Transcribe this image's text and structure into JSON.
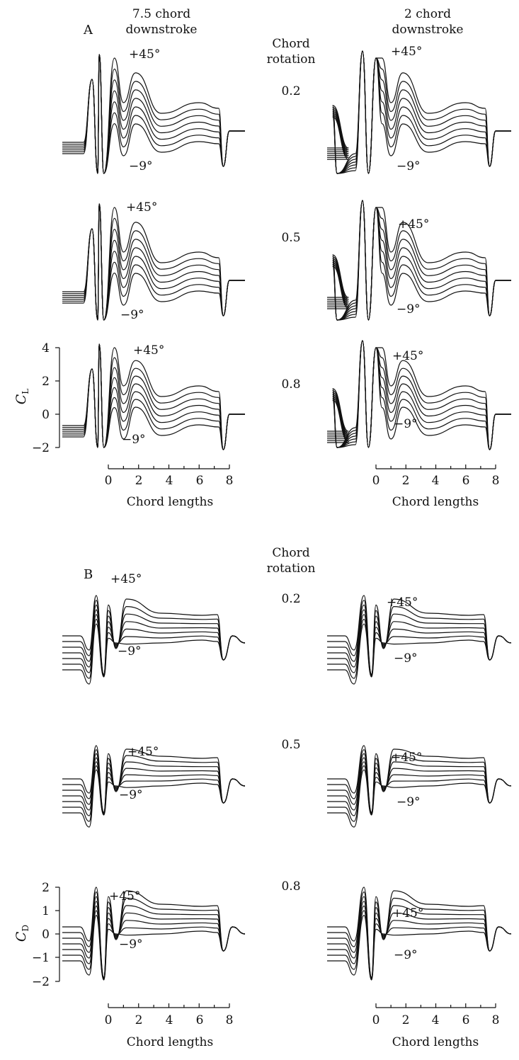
{
  "labels": {
    "col_left": [
      "7.5 chord",
      "downstroke"
    ],
    "col_right": [
      "2 chord",
      "downstroke"
    ],
    "rotation": [
      "Chord",
      "rotation"
    ],
    "panel_a": "A",
    "panel_b": "B",
    "angle_high": "+45°",
    "angle_low": "−9°",
    "xlabel": "Chord lengths",
    "ylabel_lift_main": "C",
    "ylabel_lift_sub": "L",
    "ylabel_drag_main": "C",
    "ylabel_drag_sub": "D"
  },
  "chart_data": {
    "type": "line",
    "description_of_series": "Each subplot shows one curve per angle of attack between the labelled extremes (+45° and −9°).",
    "xlabel": "Chord lengths",
    "x_ticks": [
      0,
      2,
      4,
      6,
      8
    ],
    "panels": [
      {
        "panel": "A",
        "quantity": "CL",
        "ylim": [
          -2,
          4
        ],
        "y_ticks": [
          4,
          2,
          0,
          -2
        ],
        "rows": [
          {
            "rotation": "0.2",
            "columns": [
              "7.5 chord downstroke",
              "2 chord downstroke"
            ]
          },
          {
            "rotation": "0.5",
            "columns": [
              "7.5 chord downstroke",
              "2 chord downstroke"
            ]
          },
          {
            "rotation": "0.8",
            "columns": [
              "7.5 chord downstroke",
              "2 chord downstroke"
            ]
          }
        ],
        "angle_range": [
          "+45°",
          "−9°"
        ]
      },
      {
        "panel": "B",
        "quantity": "CD",
        "ylim": [
          -2,
          2
        ],
        "y_ticks": [
          2,
          1,
          0,
          -1,
          -2
        ],
        "rows": [
          {
            "rotation": "0.2",
            "columns": [
              "7.5 chord downstroke",
              "2 chord downstroke"
            ]
          },
          {
            "rotation": "0.5",
            "columns": [
              "7.5 chord downstroke",
              "2 chord downstroke"
            ]
          },
          {
            "rotation": "0.8",
            "columns": [
              "7.5 chord downstroke",
              "2 chord downstroke"
            ]
          }
        ],
        "angle_range": [
          "+45°",
          "−9°"
        ]
      }
    ]
  }
}
